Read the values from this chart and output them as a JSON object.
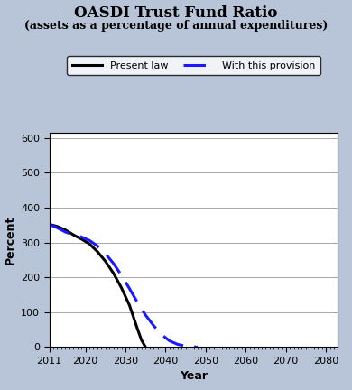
{
  "title_line1": "OASDI Trust Fund Ratio",
  "title_line2": "(assets as a percentage of annual expenditures)",
  "xlabel": "Year",
  "ylabel": "Percent",
  "xlim": [
    2011,
    2083
  ],
  "ylim": [
    0,
    615
  ],
  "xticks": [
    2011,
    2020,
    2030,
    2040,
    2050,
    2060,
    2070,
    2080
  ],
  "yticks": [
    0,
    100,
    200,
    300,
    400,
    500,
    600
  ],
  "outer_bg_color": "#6b5b75",
  "inner_bg_color": "#b8c4d8",
  "plot_bg_color": "#ffffff",
  "present_law": {
    "label": "Present law",
    "color": "#000000",
    "linewidth": 2.2,
    "x": [
      2011,
      2013,
      2015,
      2017,
      2019,
      2021,
      2023,
      2025,
      2027,
      2029,
      2031,
      2033,
      2034,
      2035
    ],
    "y": [
      352,
      346,
      336,
      322,
      310,
      296,
      274,
      246,
      212,
      170,
      120,
      52,
      20,
      0
    ]
  },
  "provision": {
    "label": "With this provision",
    "color": "#1a1aff",
    "linewidth": 2.2,
    "x": [
      2011,
      2013,
      2015,
      2017,
      2019,
      2021,
      2023,
      2025,
      2027,
      2029,
      2031,
      2033,
      2035,
      2037,
      2039,
      2041,
      2043,
      2045,
      2047,
      2048
    ],
    "y": [
      352,
      342,
      330,
      322,
      316,
      306,
      290,
      268,
      240,
      206,
      168,
      128,
      92,
      62,
      36,
      18,
      8,
      3,
      1,
      0
    ]
  },
  "grid_color": "#999999",
  "title_fontsize": 12,
  "subtitle_fontsize": 9,
  "axis_label_fontsize": 9,
  "tick_fontsize": 8
}
